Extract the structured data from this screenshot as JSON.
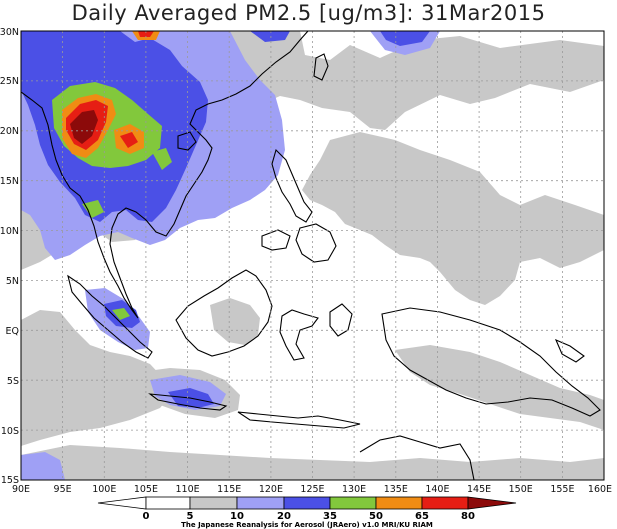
{
  "title": "Daily Averaged PM2.5 [ug/m3]: 31Mar2015",
  "lat_labels": [
    "30N",
    "25N",
    "20N",
    "15N",
    "10N",
    "5N",
    "EQ",
    "5S",
    "10S",
    "15S"
  ],
  "lon_labels": [
    "90E",
    "95E",
    "100E",
    "105E",
    "110E",
    "115E",
    "120E",
    "125E",
    "130E",
    "135E",
    "140E",
    "145E",
    "150E",
    "155E",
    "160E"
  ],
  "colorbar": {
    "levels": [
      "0",
      "5",
      "10",
      "20",
      "35",
      "50",
      "65",
      "80"
    ],
    "colors": [
      "#ffffff",
      "#c8c8c8",
      "#9fa0f5",
      "#4b50e6",
      "#82c83c",
      "#f08c14",
      "#e61e14",
      "#8c0a0a"
    ]
  },
  "credit": "The Japanese Reanalysis for Aerosol (JRAero) v1.0 MRI/KU RIAM",
  "map": {
    "extent": {
      "lon": [
        90,
        160
      ],
      "lat": [
        -15,
        30
      ]
    },
    "fill_colors": {
      "gray": "#c8c8c8",
      "lavender": "#9fa0f5",
      "blue": "#4b50e6",
      "green": "#82c83c",
      "orange": "#f08c14",
      "red": "#e61e14",
      "darkred": "#8c0a0a"
    },
    "coast_color": "#000000",
    "grid_color": "#9a9a9a"
  }
}
